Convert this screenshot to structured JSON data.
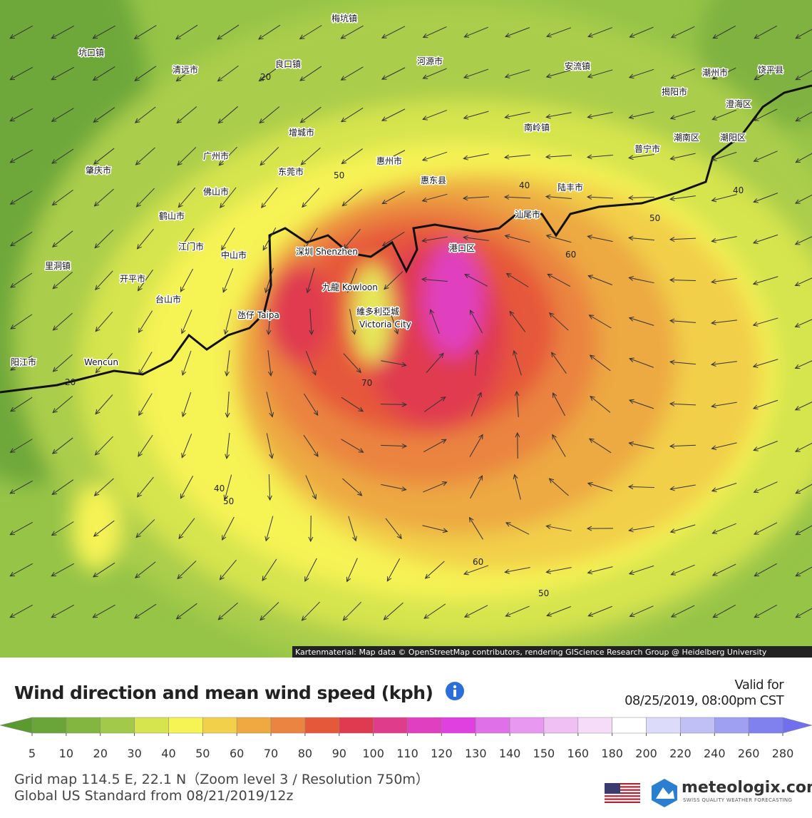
{
  "header": {
    "title": "Wind direction and mean wind speed (kph)",
    "valid_label": "Valid for",
    "valid_time": "08/25/2019, 08:00pm CST"
  },
  "map": {
    "attribution": "Kartenmaterial: Map data © OpenStreetMap contributors, rendering GIScience Research Group @ Heidelberg University",
    "places": [
      "梅坑镇",
      "坑口镇",
      "清远市",
      "良口镇",
      "河源市",
      "安流镇",
      "潮州市",
      "饶平县",
      "揭阳市",
      "澄海区",
      "增城市",
      "南岭镇",
      "普宁市",
      "潮南区",
      "潮阳区",
      "广州市",
      "惠州市",
      "肇庆市",
      "东莞市",
      "惠东县",
      "陆丰市",
      "佛山市",
      "鹤山市",
      "汕尾市",
      "江门市",
      "中山市",
      "深圳 Shenzhen",
      "港口区",
      "里洞镇",
      "开平市",
      "九龍 Kowloon",
      "台山市",
      "氹仔 Taipa",
      "維多利亞城",
      "Victoria City",
      "阳江市",
      "Wencun"
    ],
    "contour_labels": [
      "20",
      "50",
      "40",
      "40",
      "50",
      "60",
      "70",
      "20",
      "40",
      "50",
      "60",
      "50"
    ]
  },
  "legend": {
    "ticks": [
      5,
      10,
      20,
      30,
      40,
      50,
      60,
      70,
      80,
      90,
      100,
      110,
      120,
      130,
      140,
      150,
      160,
      180,
      200,
      220,
      240,
      260,
      280
    ],
    "colors": [
      "#5b9a2e",
      "#6aa53a",
      "#82b640",
      "#a3c94a",
      "#d6e44e",
      "#f6f354",
      "#f2d04a",
      "#eeaa40",
      "#ea8440",
      "#e6583a",
      "#e03a50",
      "#e03c8c",
      "#e040c0",
      "#e040e0",
      "#e070e8",
      "#e898f0",
      "#f0c0f4",
      "#f6dcf8",
      "#ffffff",
      "#dcdcfa",
      "#c0c0f6",
      "#a0a0f2",
      "#8080ee",
      "#7070ee"
    ]
  },
  "footer": {
    "grid": "Grid map 114.5 E, 22.1 N（Zoom level 3 / Resolution 750m）",
    "model": "Global US Standard from 08/21/2019/12z",
    "brand": "meteologix.com",
    "tagline": "SWISS QUALITY WEATHER FORECASTING"
  }
}
